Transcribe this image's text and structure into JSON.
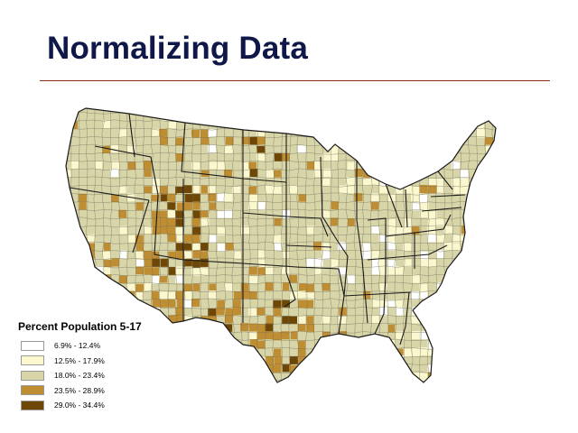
{
  "slide": {
    "title": "Normalizing Data"
  },
  "map": {
    "subject": "United States counties choropleth",
    "base_color": "#d8d5a8",
    "border_color": "#6d6d5c",
    "state_border_color": "#1a1a1a"
  },
  "legend": {
    "title": "Percent Population 5-17",
    "classes": [
      {
        "label": "6.9% - 12.4%",
        "color": "#ffffff"
      },
      {
        "label": "12.5% - 17.9%",
        "color": "#fbf7cf"
      },
      {
        "label": "18.0% - 23.4%",
        "color": "#d8d5a8"
      },
      {
        "label": "23.5% - 28.9%",
        "color": "#c08e32"
      },
      {
        "label": "29.0% - 34.4%",
        "color": "#6e4706"
      }
    ]
  }
}
